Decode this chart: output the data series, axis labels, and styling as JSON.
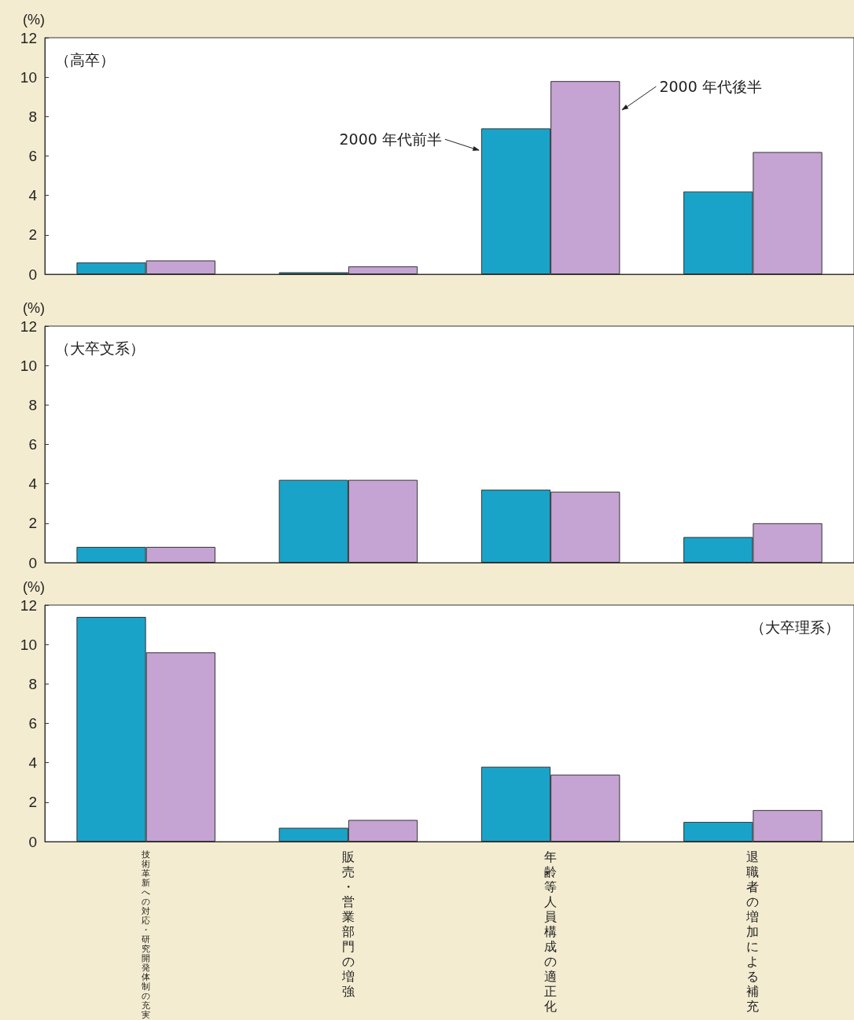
{
  "chart_data": [
    {
      "type": "bar",
      "ylabel": "(%)",
      "annotations": [
        "（高卒）"
      ],
      "categories": [
        null,
        null,
        null,
        null
      ],
      "series": [
        {
          "name": "2000 年代前半",
          "color": "#1aa3c9",
          "values": [
            0.6,
            0.1,
            7.4,
            4.2
          ]
        },
        {
          "name": "2000 年代後半",
          "color": "#c5a3d3",
          "values": [
            0.7,
            0.4,
            9.8,
            6.2
          ]
        }
      ],
      "ylim": [
        0,
        12
      ],
      "yticks": [
        0,
        2,
        4,
        6,
        8,
        10,
        12
      ],
      "grid": false,
      "legend": false,
      "tick_labels": "y"
    },
    {
      "type": "bar",
      "ylabel": "(%)",
      "annotations": [
        "（大卒文系）"
      ],
      "categories": [
        null,
        null,
        null,
        null
      ],
      "series": [
        {
          "color": "#1aa3c9",
          "values": [
            0.8,
            4.2,
            3.7,
            1.3
          ]
        },
        {
          "color": "#c5a3d3",
          "values": [
            0.8,
            4.2,
            3.6,
            2.0
          ]
        }
      ],
      "ylim": [
        0,
        12
      ],
      "yticks": [
        0,
        2,
        4,
        6,
        8,
        10,
        12
      ],
      "grid": false,
      "legend": false,
      "tick_labels": "y"
    },
    {
      "type": "bar",
      "ylabel": "(%)",
      "annotations": [
        "（大卒理系）"
      ],
      "categories": [
        "技術革新への対応・研究開発体制の充実",
        "販売・営業部門の増強",
        "年齢等人員構成の適正化",
        "退職者の増加による補充"
      ],
      "series": [
        {
          "color": "#1aa3c9",
          "values": [
            11.4,
            0.7,
            3.8,
            1.0
          ]
        },
        {
          "color": "#c5a3d3",
          "values": [
            9.6,
            1.1,
            3.4,
            1.6
          ]
        }
      ],
      "ylim": [
        0,
        12
      ],
      "yticks": [
        0,
        2,
        4,
        6,
        8,
        10,
        12
      ],
      "grid": false,
      "legend": false
    }
  ]
}
